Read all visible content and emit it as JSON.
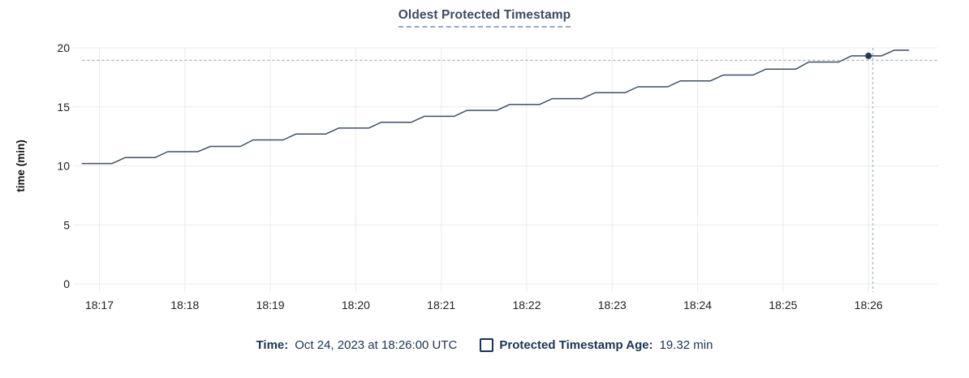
{
  "header": {
    "title": "Oldest Protected Timestamp"
  },
  "legend": {
    "time_label": "Time:",
    "time_value": "Oct 24, 2023 at 18:26:00 UTC",
    "series_label": "Protected Timestamp Age:",
    "series_value": "19.32 min",
    "series_checkbox_state": "unchecked",
    "icons": {
      "series_toggle": "checkbox-unchecked-icon"
    }
  },
  "colors": {
    "line": "#3f4e66",
    "marker_dot": "#2b3a52",
    "crosshair": "#a4b7c2",
    "gridline": "#ebebeb",
    "tick_text": "#1f1f1f",
    "axis_title_text": "#111111",
    "title_text": "#3c4a63",
    "title_underline": "#9aa9ba",
    "legend_text": "#1b3454"
  },
  "chart_data": {
    "type": "line",
    "title": "Oldest Protected Timestamp",
    "xlabel": "",
    "ylabel": "time (min)",
    "grid": true,
    "legend_position": "bottom",
    "x_axis": {
      "tick_labels": [
        "18:17",
        "18:18",
        "18:19",
        "18:20",
        "18:21",
        "18:22",
        "18:23",
        "18:24",
        "18:25",
        "18:26"
      ],
      "tick_positions_min": [
        0,
        1,
        2,
        3,
        4,
        5,
        6,
        7,
        8,
        9
      ],
      "t_encoding": "minutes_after_18:17"
    },
    "y_axis": {
      "ticks": [
        0,
        5,
        10,
        15,
        20
      ],
      "range": [
        0,
        20
      ]
    },
    "series": [
      {
        "name": "Protected Timestamp Age",
        "unit": "min",
        "points": [
          [
            -0.2,
            10.2
          ],
          [
            0.15,
            10.2
          ],
          [
            0.3,
            10.7
          ],
          [
            0.65,
            10.7
          ],
          [
            0.8,
            11.2
          ],
          [
            1.15,
            11.2
          ],
          [
            1.3,
            11.65
          ],
          [
            1.65,
            11.65
          ],
          [
            1.8,
            12.2
          ],
          [
            2.15,
            12.2
          ],
          [
            2.3,
            12.7
          ],
          [
            2.65,
            12.7
          ],
          [
            2.8,
            13.2
          ],
          [
            3.15,
            13.2
          ],
          [
            3.3,
            13.7
          ],
          [
            3.65,
            13.7
          ],
          [
            3.8,
            14.2
          ],
          [
            4.15,
            14.2
          ],
          [
            4.3,
            14.7
          ],
          [
            4.65,
            14.7
          ],
          [
            4.8,
            15.2
          ],
          [
            5.15,
            15.2
          ],
          [
            5.3,
            15.7
          ],
          [
            5.65,
            15.7
          ],
          [
            5.8,
            16.2
          ],
          [
            6.15,
            16.2
          ],
          [
            6.3,
            16.7
          ],
          [
            6.65,
            16.7
          ],
          [
            6.8,
            17.2
          ],
          [
            7.15,
            17.2
          ],
          [
            7.3,
            17.7
          ],
          [
            7.65,
            17.7
          ],
          [
            7.8,
            18.2
          ],
          [
            8.15,
            18.2
          ],
          [
            8.3,
            18.8
          ],
          [
            8.65,
            18.8
          ],
          [
            8.8,
            19.32
          ],
          [
            9.15,
            19.32
          ],
          [
            9.3,
            19.8
          ],
          [
            9.47,
            19.8
          ]
        ]
      }
    ],
    "hover": {
      "snapped_point": {
        "t_min": 9.0,
        "value_min": 19.32,
        "time_label": "18:26:00"
      },
      "crosshair": {
        "t_min": 9.05,
        "value_min": 18.94
      }
    }
  }
}
